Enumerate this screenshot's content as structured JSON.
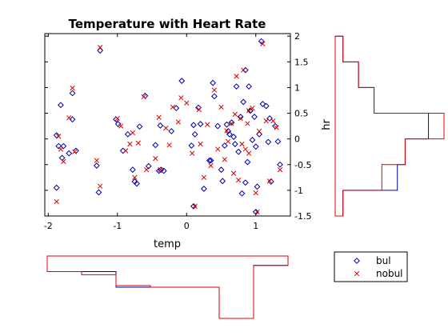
{
  "chart_data": [
    {
      "type": "scatter",
      "title": "Temperature with Heart Rate",
      "xlabel": "temp",
      "ylabel": "hr",
      "xlim": [
        -2.05,
        1.5
      ],
      "ylim": [
        -1.5,
        2.05
      ],
      "xticks": [
        -2,
        -1,
        0,
        1
      ],
      "xtick_labels": [
        "-2",
        "-1",
        "0",
        "1"
      ],
      "yticks": [
        -1.5,
        -1,
        -0.5,
        0,
        0.5,
        1,
        1.5,
        2
      ],
      "ytick_labels": [
        "-1.5",
        "-1",
        "-0.5",
        "0",
        "0.5",
        "1",
        "1.5",
        "2"
      ],
      "yaxis_side": "right",
      "grid": false,
      "series": [
        {
          "name": "bul",
          "marker": "diamond",
          "color": "#0000aa",
          "points": [
            [
              -1.88,
              0.07
            ],
            [
              -1.88,
              -0.95
            ],
            [
              -1.85,
              -0.14
            ],
            [
              -1.82,
              0.66
            ],
            [
              -1.8,
              -0.37
            ],
            [
              -1.78,
              -0.14
            ],
            [
              -1.7,
              -0.28
            ],
            [
              -1.65,
              0.38
            ],
            [
              -1.65,
              0.89
            ],
            [
              -1.6,
              -0.23
            ],
            [
              -1.3,
              -0.52
            ],
            [
              -1.27,
              -1.04
            ],
            [
              -1.25,
              1.72
            ],
            [
              -1.02,
              0.38
            ],
            [
              -0.99,
              0.29
            ],
            [
              -0.92,
              -0.23
            ],
            [
              -0.85,
              0.09
            ],
            [
              -0.78,
              -0.6
            ],
            [
              -0.75,
              -0.83
            ],
            [
              -0.72,
              -0.87
            ],
            [
              -0.68,
              0.24
            ],
            [
              -0.6,
              0.84
            ],
            [
              -0.55,
              -0.53
            ],
            [
              -0.45,
              -0.12
            ],
            [
              -0.4,
              -0.62
            ],
            [
              -0.38,
              0.26
            ],
            [
              -0.37,
              -0.6
            ],
            [
              -0.33,
              -0.62
            ],
            [
              -0.22,
              0.15
            ],
            [
              -0.15,
              0.6
            ],
            [
              -0.07,
              1.13
            ],
            [
              0.07,
              -0.13
            ],
            [
              0.1,
              0.27
            ],
            [
              0.1,
              -1.31
            ],
            [
              0.12,
              0.09
            ],
            [
              0.17,
              0.61
            ],
            [
              0.2,
              0.29
            ],
            [
              0.25,
              -0.97
            ],
            [
              0.33,
              -0.42
            ],
            [
              0.35,
              -0.42
            ],
            [
              0.38,
              1.09
            ],
            [
              0.4,
              0.83
            ],
            [
              0.45,
              0.25
            ],
            [
              0.5,
              -0.6
            ],
            [
              0.52,
              -0.82
            ],
            [
              0.55,
              -0.13
            ],
            [
              0.58,
              0.28
            ],
            [
              0.6,
              0.15
            ],
            [
              0.62,
              0.09
            ],
            [
              0.65,
              0.32
            ],
            [
              0.68,
              0.04
            ],
            [
              0.7,
              -0.1
            ],
            [
              0.72,
              1.02
            ],
            [
              0.75,
              -0.25
            ],
            [
              0.78,
              0.43
            ],
            [
              0.8,
              -1.06
            ],
            [
              0.82,
              0.72
            ],
            [
              0.85,
              -0.85
            ],
            [
              0.88,
              -0.45
            ],
            [
              0.92,
              0.55
            ],
            [
              0.95,
              -0.02
            ],
            [
              0.98,
              0.43
            ],
            [
              1.0,
              -0.15
            ],
            [
              1.02,
              -0.93
            ],
            [
              1.05,
              0.09
            ],
            [
              1.08,
              1.9
            ],
            [
              1.1,
              0.68
            ],
            [
              1.15,
              0.64
            ],
            [
              1.18,
              -0.06
            ],
            [
              1.2,
              0.4
            ],
            [
              1.22,
              -0.83
            ],
            [
              1.28,
              0.25
            ],
            [
              1.32,
              -0.05
            ],
            [
              1.35,
              -0.5
            ],
            [
              0.85,
              1.34
            ],
            [
              0.9,
              1.02
            ],
            [
              0.92,
              0.55
            ],
            [
              1.0,
              -1.42
            ]
          ]
        },
        {
          "name": "nobul",
          "marker": "x",
          "color": "#dd0000",
          "points": [
            [
              -1.88,
              -1.22
            ],
            [
              -1.85,
              0.05
            ],
            [
              -1.82,
              -0.2
            ],
            [
              -1.78,
              -0.44
            ],
            [
              -1.7,
              0.41
            ],
            [
              -1.65,
              0.99
            ],
            [
              -1.62,
              -0.25
            ],
            [
              -1.3,
              -0.42
            ],
            [
              -1.25,
              -0.92
            ],
            [
              -1.25,
              1.78
            ],
            [
              -1.0,
              0.4
            ],
            [
              -0.95,
              0.25
            ],
            [
              -0.88,
              -0.23
            ],
            [
              -0.82,
              -0.1
            ],
            [
              -0.78,
              0.12
            ],
            [
              -0.75,
              -0.75
            ],
            [
              -0.7,
              -0.08
            ],
            [
              -0.62,
              0.82
            ],
            [
              -0.58,
              -0.6
            ],
            [
              -0.45,
              -0.38
            ],
            [
              -0.4,
              0.42
            ],
            [
              -0.38,
              -0.6
            ],
            [
              -0.3,
              0.21
            ],
            [
              -0.25,
              -0.12
            ],
            [
              -0.2,
              0.62
            ],
            [
              -0.12,
              0.33
            ],
            [
              -0.08,
              0.8
            ],
            [
              0.0,
              0.7
            ],
            [
              0.08,
              -0.28
            ],
            [
              0.12,
              -1.31
            ],
            [
              0.18,
              0.57
            ],
            [
              0.2,
              -0.1
            ],
            [
              0.25,
              -0.75
            ],
            [
              0.3,
              0.28
            ],
            [
              0.35,
              -0.52
            ],
            [
              0.4,
              0.95
            ],
            [
              0.45,
              -0.2
            ],
            [
              0.5,
              0.62
            ],
            [
              0.55,
              -0.4
            ],
            [
              0.58,
              0.16
            ],
            [
              0.6,
              -0.05
            ],
            [
              0.65,
              0.3
            ],
            [
              0.68,
              -0.67
            ],
            [
              0.7,
              0.48
            ],
            [
              0.72,
              1.22
            ],
            [
              0.75,
              -0.8
            ],
            [
              0.78,
              0.4
            ],
            [
              0.8,
              -0.1
            ],
            [
              0.85,
              -0.2
            ],
            [
              0.88,
              0.3
            ],
            [
              0.9,
              -0.28
            ],
            [
              0.95,
              0.6
            ],
            [
              1.0,
              -1.05
            ],
            [
              1.05,
              0.15
            ],
            [
              1.1,
              1.85
            ],
            [
              1.15,
              0.35
            ],
            [
              1.2,
              -0.82
            ],
            [
              1.25,
              0.35
            ],
            [
              1.3,
              0.22
            ],
            [
              1.35,
              -0.6
            ],
            [
              0.82,
              1.34
            ],
            [
              0.9,
              0.55
            ],
            [
              1.02,
              -1.42
            ]
          ]
        }
      ]
    },
    {
      "type": "histogram",
      "orientation": "horizontal",
      "description_axis": "hr",
      "bin_edges": [
        -1.5,
        -1,
        -0.5,
        0,
        0.5,
        1,
        1.5,
        2
      ],
      "series": [
        {
          "name": "bul",
          "color": "#0000aa",
          "counts": [
            1,
            8,
            9,
            12,
            5,
            3,
            1
          ]
        },
        {
          "name": "nobul",
          "color": "#dd0000",
          "counts": [
            1,
            6,
            9,
            14,
            5,
            3,
            1
          ]
        }
      ]
    },
    {
      "type": "histogram",
      "orientation": "vertical",
      "description_axis": "temp",
      "bin_edges": [
        -2,
        -1.5,
        -1,
        -0.5,
        0,
        0.5,
        1,
        1.5
      ],
      "series": [
        {
          "name": "bul",
          "color": "#0000aa",
          "counts": [
            1,
            1,
            2,
            2,
            2,
            4,
            0.6
          ]
        },
        {
          "name": "nobul",
          "color": "#dd0000",
          "counts": [
            1,
            1.2,
            1.9,
            2,
            2,
            4,
            0.6
          ]
        }
      ]
    }
  ],
  "legend": {
    "position": "bottom-right",
    "entries": [
      {
        "name": "bul",
        "marker": "diamond",
        "color": "#0000aa"
      },
      {
        "name": "nobul",
        "marker": "x",
        "color": "#dd0000"
      }
    ]
  }
}
